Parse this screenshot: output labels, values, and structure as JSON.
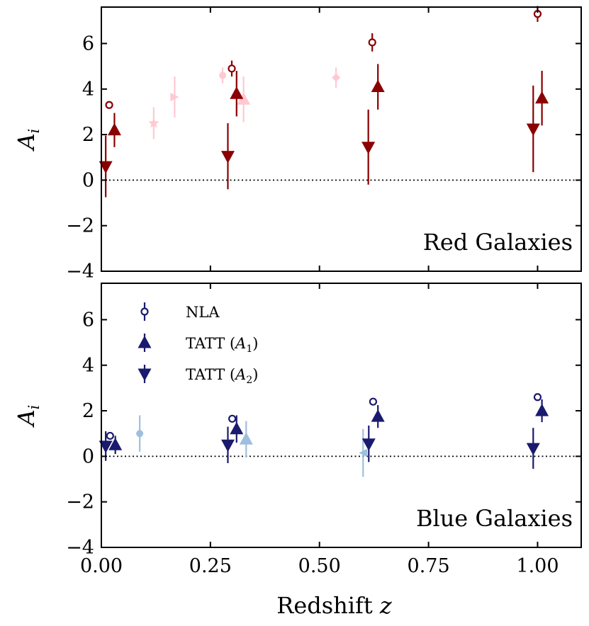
{
  "chart_data": [
    {
      "type": "scatter",
      "title": "",
      "panel_label": "Red Galaxies",
      "xlabel": "Redshift z",
      "ylabel": "A_i",
      "xlim": [
        0,
        1.1
      ],
      "ylim": [
        -4,
        7.6
      ],
      "x_ticks": [
        0,
        0.25,
        0.5,
        0.75,
        1.0
      ],
      "y_ticks": [
        -4,
        -2,
        0,
        2,
        4,
        6
      ],
      "y_tick_labels": [
        "−4",
        "−2",
        "0",
        "2",
        "4",
        "6"
      ],
      "reference_line": {
        "y": 0,
        "style": "dotted"
      },
      "color": "#8b0000",
      "series": [
        {
          "name": "NLA",
          "marker": "open-circle",
          "x": [
            0.018,
            0.299,
            0.621,
            1.0
          ],
          "y": [
            3.3,
            4.9,
            6.05,
            7.3
          ],
          "yerr": [
            0.15,
            0.35,
            0.4,
            0.35
          ]
        },
        {
          "name": "TATT (A1)",
          "marker": "triangle-up",
          "x": [
            0.03,
            0.31,
            0.634,
            1.01
          ],
          "y": [
            2.2,
            3.8,
            4.1,
            3.6
          ],
          "yerr": [
            0.75,
            1.0,
            1.0,
            1.2
          ]
        },
        {
          "name": "TATT (A2)",
          "marker": "triangle-down",
          "x": [
            0.01,
            0.29,
            0.612,
            0.99
          ],
          "y": [
            0.6,
            1.05,
            1.45,
            2.25
          ],
          "yerr": [
            1.35,
            1.45,
            1.65,
            1.9
          ]
        },
        {
          "name": "literature",
          "marker": "faded-mixed",
          "color": "#ffc0cb",
          "x": [
            0.12,
            0.168,
            0.278,
            0.326,
            0.538
          ],
          "y": [
            2.5,
            3.65,
            4.6,
            3.55,
            4.5
          ],
          "yerr": [
            0.7,
            0.9,
            0.35,
            1.0,
            0.45
          ],
          "shapes": [
            "star",
            "triangle-right",
            "circle",
            "triangle-up",
            "diamond"
          ]
        }
      ]
    },
    {
      "type": "scatter",
      "title": "",
      "panel_label": "Blue Galaxies",
      "xlabel": "Redshift z",
      "ylabel": "A_i",
      "xlim": [
        0,
        1.1
      ],
      "ylim": [
        -4,
        7.6
      ],
      "x_ticks": [
        0,
        0.25,
        0.5,
        0.75,
        1.0
      ],
      "x_tick_labels": [
        "0.00",
        "0.25",
        "0.50",
        "0.75",
        "1.00"
      ],
      "y_ticks": [
        -4,
        -2,
        0,
        2,
        4,
        6
      ],
      "y_tick_labels": [
        "−4",
        "−2",
        "0",
        "2",
        "4",
        "6"
      ],
      "reference_line": {
        "y": 0,
        "style": "dotted"
      },
      "color": "#1a1a6e",
      "legend": {
        "position": "upper-left",
        "entries": [
          {
            "label": "NLA",
            "marker": "open-circle"
          },
          {
            "label": "TATT (",
            "sym": "A",
            "sub": "1",
            "close": ")",
            "marker": "triangle-up"
          },
          {
            "label": "TATT (",
            "sym": "A",
            "sub": "2",
            "close": ")",
            "marker": "triangle-down"
          }
        ]
      },
      "series": [
        {
          "name": "NLA",
          "marker": "open-circle",
          "x": [
            0.02,
            0.3,
            0.623,
            1.0
          ],
          "y": [
            0.9,
            1.65,
            2.4,
            2.6
          ],
          "yerr": [
            0.15,
            0.15,
            0.15,
            0.15
          ]
        },
        {
          "name": "TATT (A1)",
          "marker": "triangle-up",
          "x": [
            0.032,
            0.31,
            0.634,
            1.01
          ],
          "y": [
            0.5,
            1.2,
            1.75,
            2.0
          ],
          "yerr": [
            0.4,
            0.6,
            0.5,
            0.5
          ]
        },
        {
          "name": "TATT (A2)",
          "marker": "triangle-down",
          "x": [
            0.01,
            0.29,
            0.613,
            0.99
          ],
          "y": [
            0.45,
            0.5,
            0.55,
            0.35
          ],
          "yerr": [
            0.65,
            0.8,
            0.8,
            0.9
          ]
        },
        {
          "name": "literature",
          "marker": "faded-mixed",
          "color": "#8fb4d6",
          "x": [
            0.088,
            0.332,
            0.6
          ],
          "y": [
            1.0,
            0.75,
            0.15
          ],
          "yerr": [
            0.8,
            0.8,
            1.05
          ],
          "shapes": [
            "circle",
            "triangle-up",
            "triangle-left"
          ]
        }
      ]
    }
  ]
}
